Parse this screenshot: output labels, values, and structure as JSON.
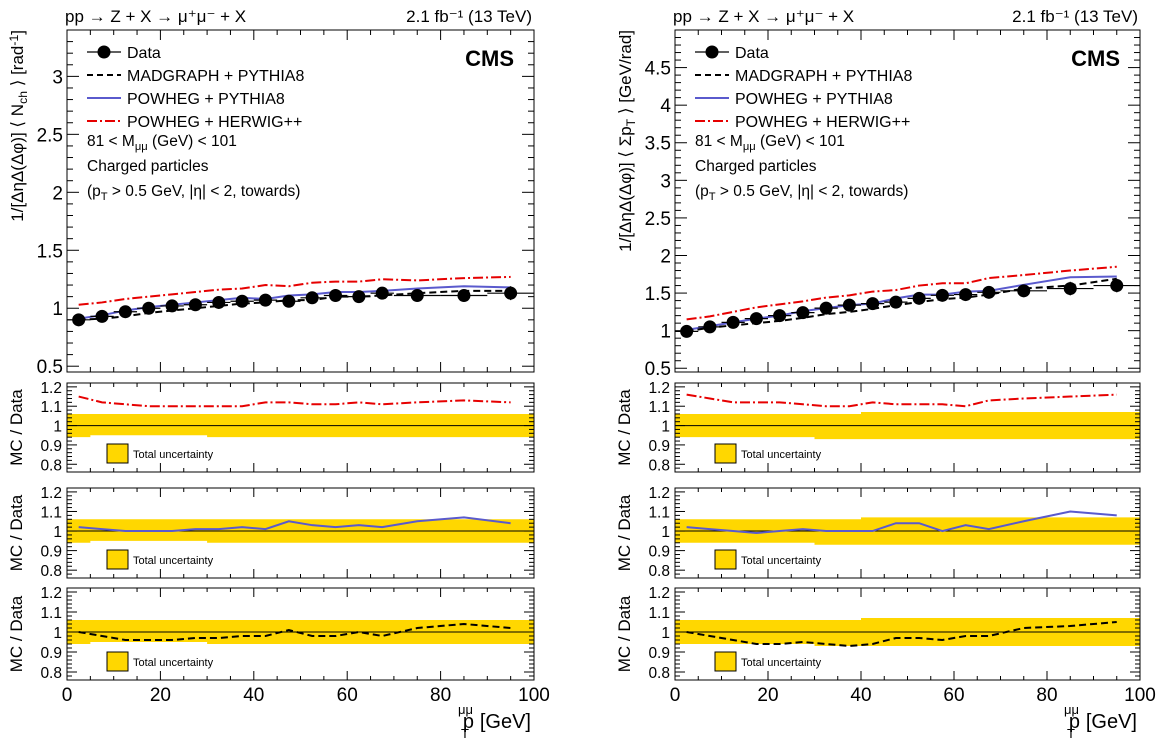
{
  "chart_data": [
    {
      "type": "line",
      "panel": "left",
      "header_left": "pp → Z + X → μ⁺μ⁻ + X",
      "header_right": "2.1 fb⁻¹ (13 TeV)",
      "cms_label": "CMS",
      "ylabel": "1/[ΔηΔ(Δφ)] ⟨N_ch⟩ [rad⁻¹]",
      "ylabel_parts": {
        "main": "1/[ΔηΔ(Δφ)] ⟨ N",
        "sub": "ch",
        "tail": " ⟩ [rad",
        "sup": "-1",
        "end": "]"
      },
      "xlabel": "p_T^μμ [GeV]",
      "xlabel_parts": {
        "main": "p",
        "sup": "μμ",
        "sub": "T",
        "unit": "[GeV]"
      },
      "xlim": [
        0,
        100
      ],
      "ylim": [
        0.45,
        3.4
      ],
      "yticks": [
        0.5,
        1,
        1.5,
        2,
        2.5,
        3
      ],
      "xticks": [
        0,
        20,
        40,
        60,
        80,
        100
      ],
      "selection_lines": [
        "81 < M_μμ (GeV) < 101",
        "Charged particles",
        "(p_T > 0.5 GeV, |η| < 2, towards)"
      ],
      "selection_parts": [
        {
          "a": "81 < M",
          "sub": "μμ",
          "b": " (GeV) < 101"
        },
        {
          "a": "Charged particles",
          "sub": "",
          "b": ""
        },
        {
          "a": "(p",
          "sub": "T",
          "b": " > 0.5 GeV, |η| < 2, towards)"
        }
      ],
      "legend": [
        "Data",
        "MADGRAPH + PYTHIA8",
        "POWHEG + PYTHIA8",
        "POWHEG + HERWIG++"
      ],
      "x": [
        2.5,
        7.5,
        12.5,
        17.5,
        22.5,
        27.5,
        32.5,
        37.5,
        42.5,
        47.5,
        52.5,
        57.5,
        62.5,
        67.5,
        75,
        85,
        95
      ],
      "xerr": [
        2.5,
        2.5,
        2.5,
        2.5,
        2.5,
        2.5,
        2.5,
        2.5,
        2.5,
        2.5,
        2.5,
        2.5,
        2.5,
        2.5,
        5,
        5,
        5
      ],
      "series": [
        {
          "name": "Data",
          "values": [
            0.9,
            0.93,
            0.97,
            1.0,
            1.02,
            1.03,
            1.05,
            1.06,
            1.07,
            1.06,
            1.09,
            1.11,
            1.1,
            1.13,
            1.11,
            1.11,
            1.13
          ],
          "yerr": [
            0.03,
            0.03,
            0.03,
            0.03,
            0.04,
            0.04,
            0.04,
            0.05,
            0.05,
            0.05,
            0.05,
            0.05,
            0.05,
            0.05,
            0.05,
            0.05,
            0.06
          ]
        },
        {
          "name": "MADGRAPH + PYTHIA8",
          "values": [
            0.9,
            0.91,
            0.93,
            0.96,
            0.98,
            1.0,
            1.02,
            1.04,
            1.05,
            1.07,
            1.07,
            1.1,
            1.1,
            1.11,
            1.13,
            1.15,
            1.15
          ]
        },
        {
          "name": "POWHEG + PYTHIA8",
          "values": [
            0.91,
            0.94,
            0.98,
            1.01,
            1.03,
            1.05,
            1.07,
            1.09,
            1.08,
            1.11,
            1.12,
            1.14,
            1.14,
            1.15,
            1.17,
            1.19,
            1.18
          ]
        },
        {
          "name": "POWHEG + HERWIG++",
          "values": [
            1.03,
            1.05,
            1.08,
            1.1,
            1.12,
            1.14,
            1.16,
            1.17,
            1.2,
            1.19,
            1.22,
            1.23,
            1.23,
            1.25,
            1.24,
            1.26,
            1.27
          ]
        }
      ],
      "colors": {
        "data": "#000000",
        "madgraph": "#000000",
        "powheg_pythia": "#5a5acd",
        "powheg_herwig": "#e60000",
        "band": "#ffd700"
      },
      "ratio_panels": [
        {
          "ylabel": "MC / Data",
          "ylim": [
            0.76,
            1.22
          ],
          "yticks": [
            0.8,
            0.9,
            1,
            1.1,
            1.2
          ],
          "series_name": "POWHEG + HERWIG++",
          "values": [
            1.15,
            1.12,
            1.11,
            1.1,
            1.1,
            1.1,
            1.1,
            1.1,
            1.12,
            1.12,
            1.11,
            1.11,
            1.12,
            1.11,
            1.12,
            1.13,
            1.12
          ],
          "band_lo": [
            0.94,
            0.95,
            0.95,
            0.95,
            0.95,
            0.95,
            0.94,
            0.94,
            0.94,
            0.94,
            0.94,
            0.94,
            0.94,
            0.94,
            0.94,
            0.94,
            0.94
          ],
          "band_hi": [
            1.06,
            1.06,
            1.06,
            1.06,
            1.06,
            1.06,
            1.06,
            1.06,
            1.06,
            1.06,
            1.06,
            1.06,
            1.06,
            1.06,
            1.06,
            1.06,
            1.06
          ],
          "band_label": "Total uncertainty"
        },
        {
          "ylabel": "MC / Data",
          "ylim": [
            0.76,
            1.22
          ],
          "yticks": [
            0.8,
            0.9,
            1,
            1.1,
            1.2
          ],
          "series_name": "POWHEG + PYTHIA8",
          "values": [
            1.02,
            1.01,
            1.0,
            1.0,
            1.0,
            1.01,
            1.01,
            1.02,
            1.01,
            1.05,
            1.03,
            1.02,
            1.03,
            1.02,
            1.05,
            1.07,
            1.04
          ],
          "band_lo": [
            0.94,
            0.95,
            0.95,
            0.95,
            0.95,
            0.95,
            0.94,
            0.94,
            0.94,
            0.94,
            0.94,
            0.94,
            0.94,
            0.94,
            0.94,
            0.94,
            0.94
          ],
          "band_hi": [
            1.06,
            1.06,
            1.06,
            1.06,
            1.06,
            1.06,
            1.06,
            1.06,
            1.06,
            1.06,
            1.06,
            1.06,
            1.06,
            1.06,
            1.06,
            1.06,
            1.06
          ],
          "band_label": "Total uncertainty"
        },
        {
          "ylabel": "MC / Data",
          "ylim": [
            0.76,
            1.22
          ],
          "yticks": [
            0.8,
            0.9,
            1,
            1.1,
            1.2
          ],
          "series_name": "MADGRAPH + PYTHIA8",
          "values": [
            1.0,
            0.98,
            0.96,
            0.96,
            0.96,
            0.97,
            0.97,
            0.98,
            0.98,
            1.01,
            0.98,
            0.98,
            1.0,
            0.98,
            1.02,
            1.04,
            1.02
          ],
          "band_lo": [
            0.94,
            0.95,
            0.95,
            0.95,
            0.95,
            0.95,
            0.94,
            0.94,
            0.94,
            0.94,
            0.94,
            0.94,
            0.94,
            0.94,
            0.94,
            0.94,
            0.94
          ],
          "band_hi": [
            1.06,
            1.06,
            1.06,
            1.06,
            1.06,
            1.06,
            1.06,
            1.06,
            1.06,
            1.06,
            1.06,
            1.06,
            1.06,
            1.06,
            1.06,
            1.06,
            1.06
          ],
          "band_label": "Total uncertainty"
        }
      ]
    },
    {
      "type": "line",
      "panel": "right",
      "header_left": "pp → Z + X → μ⁺μ⁻ + X",
      "header_right": "2.1 fb⁻¹ (13 TeV)",
      "cms_label": "CMS",
      "ylabel": "1/[ΔηΔ(Δφ)] ⟨ Σp_T ⟩ [GeV/rad]",
      "ylabel_parts": {
        "main": "1/[ΔηΔ(Δφ)] ⟨ Σp",
        "sub": "T",
        "tail": " ⟩ [GeV/rad]",
        "sup": "",
        "end": ""
      },
      "xlabel": "p_T^μμ [GeV]",
      "xlabel_parts": {
        "main": "p",
        "sup": "μμ",
        "sub": "T",
        "unit": "[GeV]"
      },
      "xlim": [
        0,
        100
      ],
      "ylim": [
        0.45,
        5.0
      ],
      "yticks": [
        0.5,
        1,
        1.5,
        2,
        2.5,
        3,
        3.5,
        4,
        4.5
      ],
      "xticks": [
        0,
        20,
        40,
        60,
        80,
        100
      ],
      "selection_lines": [
        "81 < M_μμ (GeV) < 101",
        "Charged particles",
        "(p_T > 0.5 GeV, |η| < 2, towards)"
      ],
      "selection_parts": [
        {
          "a": "81 < M",
          "sub": "μμ",
          "b": " (GeV) < 101"
        },
        {
          "a": "Charged particles",
          "sub": "",
          "b": ""
        },
        {
          "a": "(p",
          "sub": "T",
          "b": " > 0.5 GeV, |η| < 2, towards)"
        }
      ],
      "legend": [
        "Data",
        "MADGRAPH + PYTHIA8",
        "POWHEG + PYTHIA8",
        "POWHEG + HERWIG++"
      ],
      "x": [
        2.5,
        7.5,
        12.5,
        17.5,
        22.5,
        27.5,
        32.5,
        37.5,
        42.5,
        47.5,
        52.5,
        57.5,
        62.5,
        67.5,
        75,
        85,
        95
      ],
      "xerr": [
        2.5,
        2.5,
        2.5,
        2.5,
        2.5,
        2.5,
        2.5,
        2.5,
        2.5,
        2.5,
        2.5,
        2.5,
        2.5,
        2.5,
        5,
        5,
        5
      ],
      "series": [
        {
          "name": "Data",
          "values": [
            0.99,
            1.05,
            1.11,
            1.16,
            1.2,
            1.24,
            1.3,
            1.34,
            1.36,
            1.38,
            1.43,
            1.47,
            1.48,
            1.51,
            1.53,
            1.56,
            1.6
          ],
          "yerr": [
            0.03,
            0.03,
            0.04,
            0.04,
            0.05,
            0.05,
            0.06,
            0.06,
            0.06,
            0.07,
            0.07,
            0.07,
            0.08,
            0.08,
            0.08,
            0.09,
            0.09
          ]
        },
        {
          "name": "MADGRAPH + PYTHIA8",
          "values": [
            0.99,
            1.04,
            1.07,
            1.1,
            1.13,
            1.17,
            1.22,
            1.25,
            1.29,
            1.34,
            1.38,
            1.42,
            1.44,
            1.48,
            1.56,
            1.6,
            1.69
          ]
        },
        {
          "name": "POWHEG + PYTHIA8",
          "values": [
            1.01,
            1.06,
            1.11,
            1.16,
            1.2,
            1.26,
            1.3,
            1.34,
            1.36,
            1.43,
            1.48,
            1.48,
            1.52,
            1.53,
            1.61,
            1.71,
            1.72
          ]
        },
        {
          "name": "POWHEG + HERWIG++",
          "values": [
            1.15,
            1.19,
            1.25,
            1.31,
            1.35,
            1.39,
            1.44,
            1.47,
            1.52,
            1.54,
            1.6,
            1.63,
            1.63,
            1.7,
            1.74,
            1.8,
            1.85
          ]
        }
      ],
      "colors": {
        "data": "#000000",
        "madgraph": "#000000",
        "powheg_pythia": "#5a5acd",
        "powheg_herwig": "#e60000",
        "band": "#ffd700"
      },
      "ratio_panels": [
        {
          "ylabel": "MC / Data",
          "ylim": [
            0.76,
            1.22
          ],
          "yticks": [
            0.8,
            0.9,
            1,
            1.1,
            1.2
          ],
          "series_name": "POWHEG + HERWIG++",
          "values": [
            1.16,
            1.14,
            1.12,
            1.12,
            1.12,
            1.11,
            1.1,
            1.1,
            1.12,
            1.11,
            1.11,
            1.11,
            1.1,
            1.13,
            1.14,
            1.15,
            1.16
          ],
          "band_lo": [
            0.94,
            0.94,
            0.94,
            0.94,
            0.94,
            0.94,
            0.93,
            0.93,
            0.93,
            0.93,
            0.93,
            0.93,
            0.93,
            0.93,
            0.93,
            0.93,
            0.93
          ],
          "band_hi": [
            1.06,
            1.06,
            1.06,
            1.06,
            1.06,
            1.06,
            1.06,
            1.06,
            1.07,
            1.07,
            1.07,
            1.07,
            1.07,
            1.07,
            1.07,
            1.07,
            1.07
          ],
          "band_label": "Total uncertainty"
        },
        {
          "ylabel": "MC / Data",
          "ylim": [
            0.76,
            1.22
          ],
          "yticks": [
            0.8,
            0.9,
            1,
            1.1,
            1.2
          ],
          "series_name": "POWHEG + PYTHIA8",
          "values": [
            1.02,
            1.01,
            1.0,
            0.99,
            1.0,
            1.01,
            1.0,
            1.0,
            1.0,
            1.04,
            1.04,
            1.0,
            1.03,
            1.01,
            1.05,
            1.1,
            1.08
          ],
          "band_lo": [
            0.94,
            0.94,
            0.94,
            0.94,
            0.94,
            0.94,
            0.93,
            0.93,
            0.93,
            0.93,
            0.93,
            0.93,
            0.93,
            0.93,
            0.93,
            0.93,
            0.93
          ],
          "band_hi": [
            1.06,
            1.06,
            1.06,
            1.06,
            1.06,
            1.06,
            1.06,
            1.06,
            1.07,
            1.07,
            1.07,
            1.07,
            1.07,
            1.07,
            1.07,
            1.07,
            1.07
          ],
          "band_label": "Total uncertainty"
        },
        {
          "ylabel": "MC / Data",
          "ylim": [
            0.76,
            1.22
          ],
          "yticks": [
            0.8,
            0.9,
            1,
            1.1,
            1.2
          ],
          "series_name": "MADGRAPH + PYTHIA8",
          "values": [
            1.0,
            0.98,
            0.96,
            0.94,
            0.94,
            0.95,
            0.94,
            0.93,
            0.94,
            0.97,
            0.97,
            0.96,
            0.98,
            0.98,
            1.02,
            1.03,
            1.05
          ],
          "band_lo": [
            0.94,
            0.94,
            0.94,
            0.94,
            0.94,
            0.94,
            0.93,
            0.93,
            0.93,
            0.93,
            0.93,
            0.93,
            0.93,
            0.93,
            0.93,
            0.93,
            0.93
          ],
          "band_hi": [
            1.06,
            1.06,
            1.06,
            1.06,
            1.06,
            1.06,
            1.06,
            1.06,
            1.07,
            1.07,
            1.07,
            1.07,
            1.07,
            1.07,
            1.07,
            1.07,
            1.07
          ],
          "band_label": "Total uncertainty"
        }
      ]
    }
  ]
}
